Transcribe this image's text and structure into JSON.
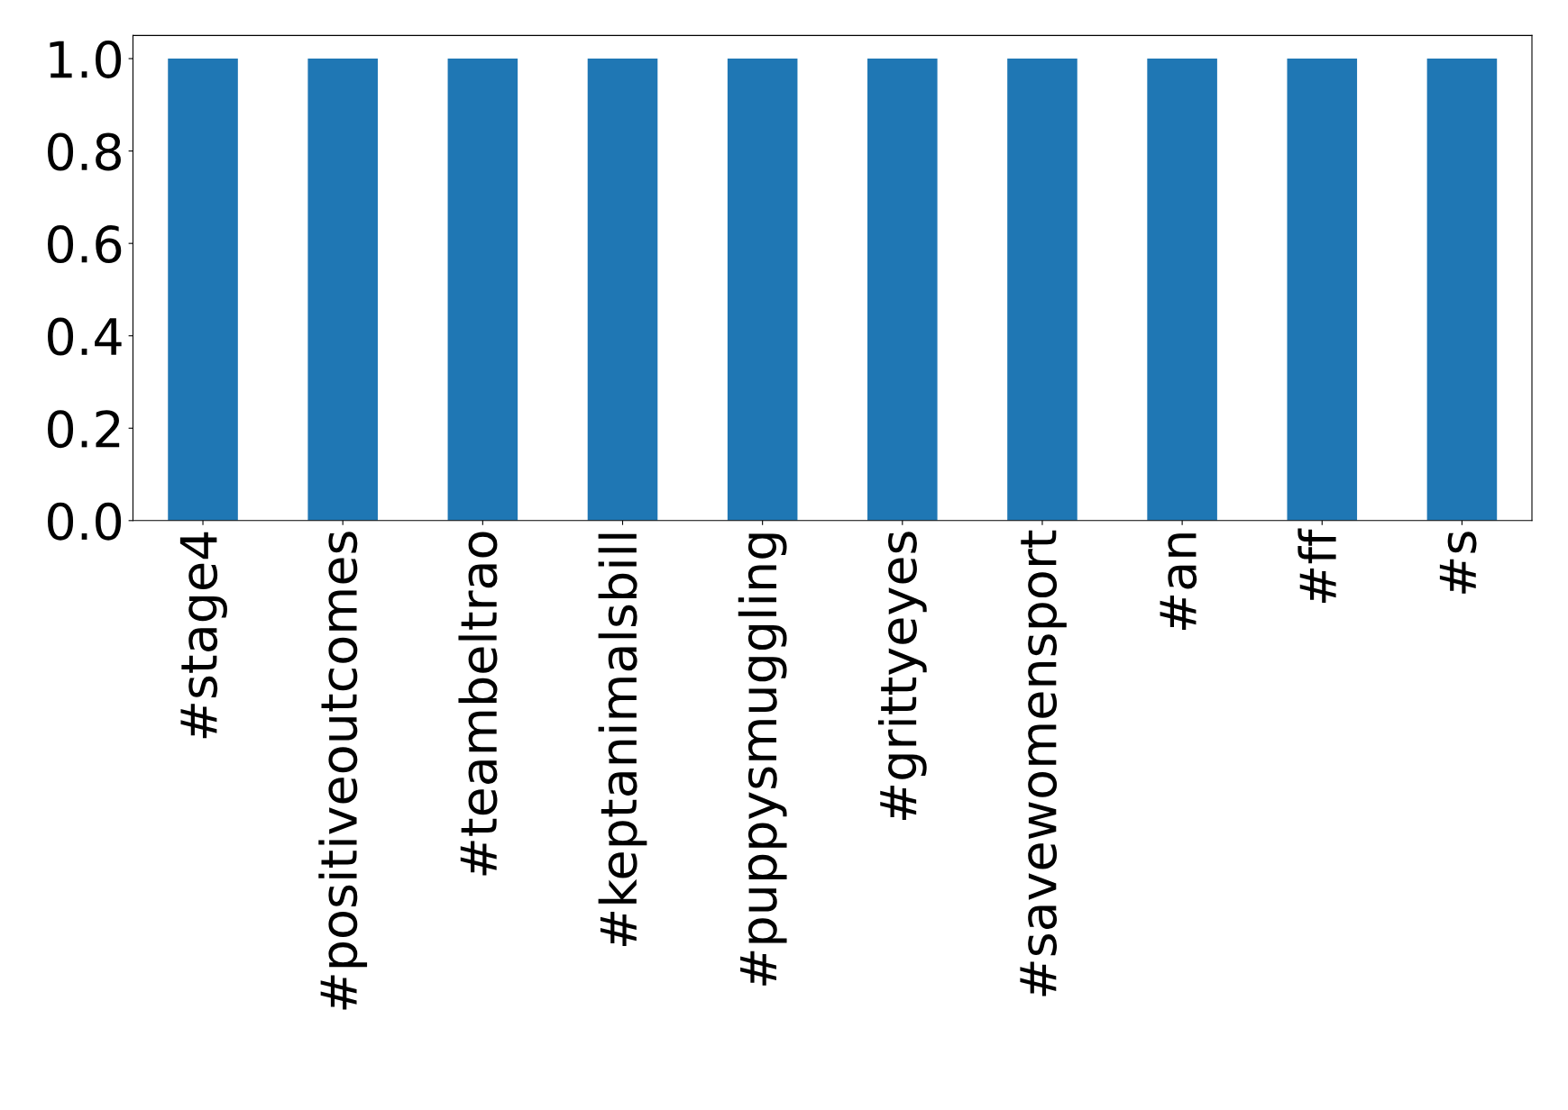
{
  "chart_data": {
    "type": "bar",
    "categories": [
      "#stage4",
      "#positiveoutcomes",
      "#teambeltrao",
      "#keptanimalsbill",
      "#puppysmuggling",
      "#grittyeyes",
      "#savewomensport",
      "#an",
      "#ff",
      "#s"
    ],
    "values": [
      1.0,
      1.0,
      1.0,
      1.0,
      1.0,
      1.0,
      1.0,
      1.0,
      1.0,
      1.0
    ],
    "color": "#1f77b4",
    "ylim": [
      0,
      1.05
    ],
    "yticks": [
      {
        "value": 0,
        "label": "0.0"
      },
      {
        "value": 0.2,
        "label": "0.2"
      },
      {
        "value": 0.4,
        "label": "0.4"
      },
      {
        "value": 0.6,
        "label": "0.6"
      },
      {
        "value": 0.8,
        "label": "0.8"
      },
      {
        "value": 1.0,
        "label": "1.0"
      }
    ],
    "grid": false,
    "legend": false
  }
}
